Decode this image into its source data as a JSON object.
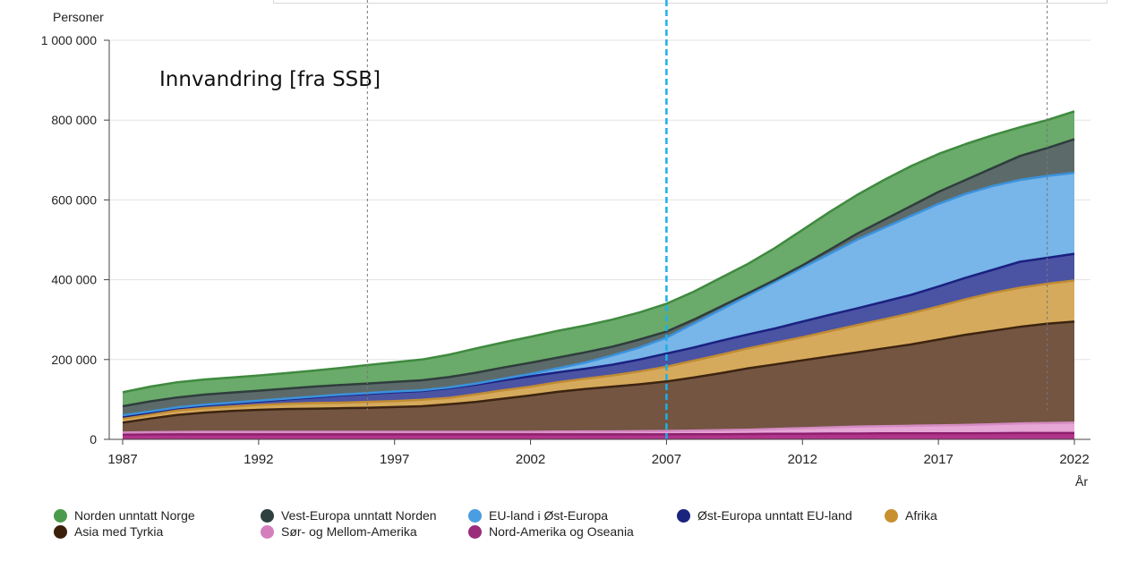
{
  "chart_data": {
    "type": "area",
    "stacked": true,
    "title": "Innvandring [fra SSB]",
    "ylabel": "Personer",
    "xlabel": "År",
    "ylim": [
      0,
      1000000
    ],
    "xlim": [
      1987,
      2022
    ],
    "y_ticks": [
      0,
      200000,
      400000,
      600000,
      800000,
      1000000
    ],
    "y_tick_labels": [
      "0",
      "200 000",
      "400 000",
      "600 000",
      "800 000",
      "1 000 000"
    ],
    "x_ticks": [
      1987,
      1992,
      1997,
      2002,
      2007,
      2012,
      2017,
      2022
    ],
    "x_tick_labels": [
      "1987",
      "1992",
      "1997",
      "2002",
      "2007",
      "2012",
      "2017",
      "2022"
    ],
    "grid": true,
    "legend_position": "bottom",
    "reference_lines": [
      {
        "x": 1996,
        "style": "dashed",
        "color": "#777777"
      },
      {
        "x": 2007,
        "style": "dashed",
        "color": "#1ab0e8"
      },
      {
        "x": 2021,
        "style": "dashed",
        "color": "#777777"
      }
    ],
    "x": [
      1987,
      1988,
      1989,
      1990,
      1991,
      1992,
      1993,
      1994,
      1995,
      1996,
      1997,
      1998,
      1999,
      2000,
      2001,
      2002,
      2003,
      2004,
      2005,
      2006,
      2007,
      2008,
      2009,
      2010,
      2011,
      2012,
      2013,
      2014,
      2015,
      2016,
      2017,
      2018,
      2019,
      2020,
      2021,
      2022
    ],
    "cumulative_totals": {
      "Nord-Amerika og Oseania": [
        12000,
        12500,
        12500,
        12500,
        12500,
        12500,
        12500,
        12500,
        12500,
        12500,
        12500,
        12500,
        12500,
        12500,
        12500,
        12500,
        12500,
        12500,
        12500,
        12500,
        12500,
        13000,
        13000,
        13500,
        14000,
        14000,
        14500,
        14500,
        15000,
        15000,
        15000,
        15000,
        15500,
        16000,
        16000,
        16000
      ],
      "Sør- og Mellom-Amerika": [
        17000,
        18000,
        18500,
        19000,
        19000,
        19000,
        19000,
        19000,
        19000,
        19000,
        19000,
        19000,
        19000,
        19000,
        19000,
        19000,
        19500,
        20000,
        20000,
        20500,
        21000,
        22000,
        23000,
        24000,
        26000,
        28000,
        30000,
        32000,
        33000,
        34000,
        35000,
        36000,
        38000,
        40000,
        41000,
        42000
      ],
      "Asia med Tyrkia": [
        42000,
        52000,
        61000,
        67000,
        71000,
        74000,
        76000,
        77000,
        78000,
        79000,
        81000,
        83000,
        88000,
        94000,
        102000,
        110000,
        119000,
        126000,
        132000,
        138000,
        145000,
        155000,
        166000,
        178000,
        188000,
        198000,
        208000,
        218000,
        228000,
        238000,
        250000,
        262000,
        272000,
        282000,
        290000,
        295000
      ],
      "Afrika": [
        52000,
        62000,
        72000,
        78000,
        82000,
        86000,
        89000,
        91000,
        92000,
        94000,
        96000,
        99000,
        104000,
        113000,
        123000,
        132000,
        143000,
        152000,
        160000,
        170000,
        182000,
        197000,
        212000,
        228000,
        242000,
        256000,
        271000,
        286000,
        301000,
        316000,
        333000,
        351000,
        367000,
        380000,
        390000,
        398000
      ],
      "Øst-Europa unntatt EU-land": [
        57000,
        67000,
        78000,
        85000,
        90000,
        95000,
        100000,
        105000,
        110000,
        114000,
        118000,
        121000,
        128000,
        137000,
        148000,
        158000,
        168000,
        177000,
        187000,
        200000,
        215000,
        230000,
        247000,
        263000,
        278000,
        295000,
        312000,
        328000,
        345000,
        362000,
        383000,
        405000,
        425000,
        445000,
        455000,
        465000
      ],
      "EU-land i Øst-Europa": [
        60000,
        70000,
        80000,
        87000,
        92000,
        97000,
        102000,
        107000,
        112000,
        116000,
        120000,
        123000,
        130000,
        140000,
        152000,
        164000,
        178000,
        192000,
        210000,
        230000,
        255000,
        290000,
        325000,
        360000,
        395000,
        430000,
        465000,
        500000,
        530000,
        560000,
        590000,
        615000,
        635000,
        650000,
        660000,
        668000
      ],
      "Vest-Europa unntatt Norden": [
        83000,
        95000,
        105000,
        112000,
        117000,
        122000,
        127000,
        132000,
        136000,
        140000,
        144000,
        148000,
        156000,
        167000,
        180000,
        192000,
        205000,
        218000,
        232000,
        250000,
        270000,
        300000,
        333000,
        366000,
        400000,
        436000,
        475000,
        515000,
        550000,
        585000,
        620000,
        650000,
        680000,
        710000,
        730000,
        752000
      ],
      "Norden unntatt Norge": [
        118000,
        132000,
        143000,
        150000,
        155000,
        160000,
        166000,
        172000,
        179000,
        186000,
        193000,
        200000,
        212000,
        228000,
        243000,
        257000,
        272000,
        285000,
        300000,
        318000,
        340000,
        370000,
        405000,
        440000,
        480000,
        525000,
        570000,
        612000,
        650000,
        685000,
        715000,
        740000,
        762000,
        782000,
        800000,
        822000
      ]
    },
    "series_order_bottom_to_top": [
      "Nord-Amerika og Oseania",
      "Sør- og Mellom-Amerika",
      "Asia med Tyrkia",
      "Afrika",
      "Øst-Europa unntatt EU-land",
      "EU-land i Øst-Europa",
      "Vest-Europa unntatt Norden",
      "Norden unntatt Norge"
    ],
    "series_colors": {
      "Nord-Amerika og Oseania": {
        "fill": "#b0358a",
        "line": "#8e1f6e",
        "dot": "#9b2b7b"
      },
      "Sør- og Mellom-Amerika": {
        "fill": "#e6a6d6",
        "line": "#d58bc3",
        "dot": "#d47fbd"
      },
      "Asia med Tyrkia": {
        "fill": "#735542",
        "line": "#3d2410",
        "dot": "#3b1f0b"
      },
      "Afrika": {
        "fill": "#d6aa5c",
        "line": "#c08c34",
        "dot": "#c8902f"
      },
      "Øst-Europa unntatt EU-land": {
        "fill": "#4b53a3",
        "line": "#1a2180",
        "dot": "#1a237e"
      },
      "EU-land i Øst-Europa": {
        "fill": "#78b5e8",
        "line": "#3b92dc",
        "dot": "#4a9de0"
      },
      "Vest-Europa unntatt Norden": {
        "fill": "#5c6b6a",
        "line": "#2f3d3d",
        "dot": "#2f4040"
      },
      "Norden unntatt Norge": {
        "fill": "#6aaa6a",
        "line": "#3f8a3f",
        "dot": "#4c9a4c"
      }
    }
  },
  "legend": {
    "items": [
      {
        "label": "Norden unntatt Norge",
        "color": "#4c9a4c"
      },
      {
        "label": "Vest-Europa unntatt Norden",
        "color": "#2f4040"
      },
      {
        "label": "EU-land i Øst-Europa",
        "color": "#4a9de0"
      },
      {
        "label": "Øst-Europa unntatt EU-land",
        "color": "#1a237e"
      },
      {
        "label": "Afrika",
        "color": "#c8902f"
      },
      {
        "label": "Asia med Tyrkia",
        "color": "#3b1f0b"
      },
      {
        "label": "Sør- og Mellom-Amerika",
        "color": "#d47fbd"
      },
      {
        "label": "Nord-Amerika og Oseania",
        "color": "#9b2b7b"
      }
    ]
  }
}
